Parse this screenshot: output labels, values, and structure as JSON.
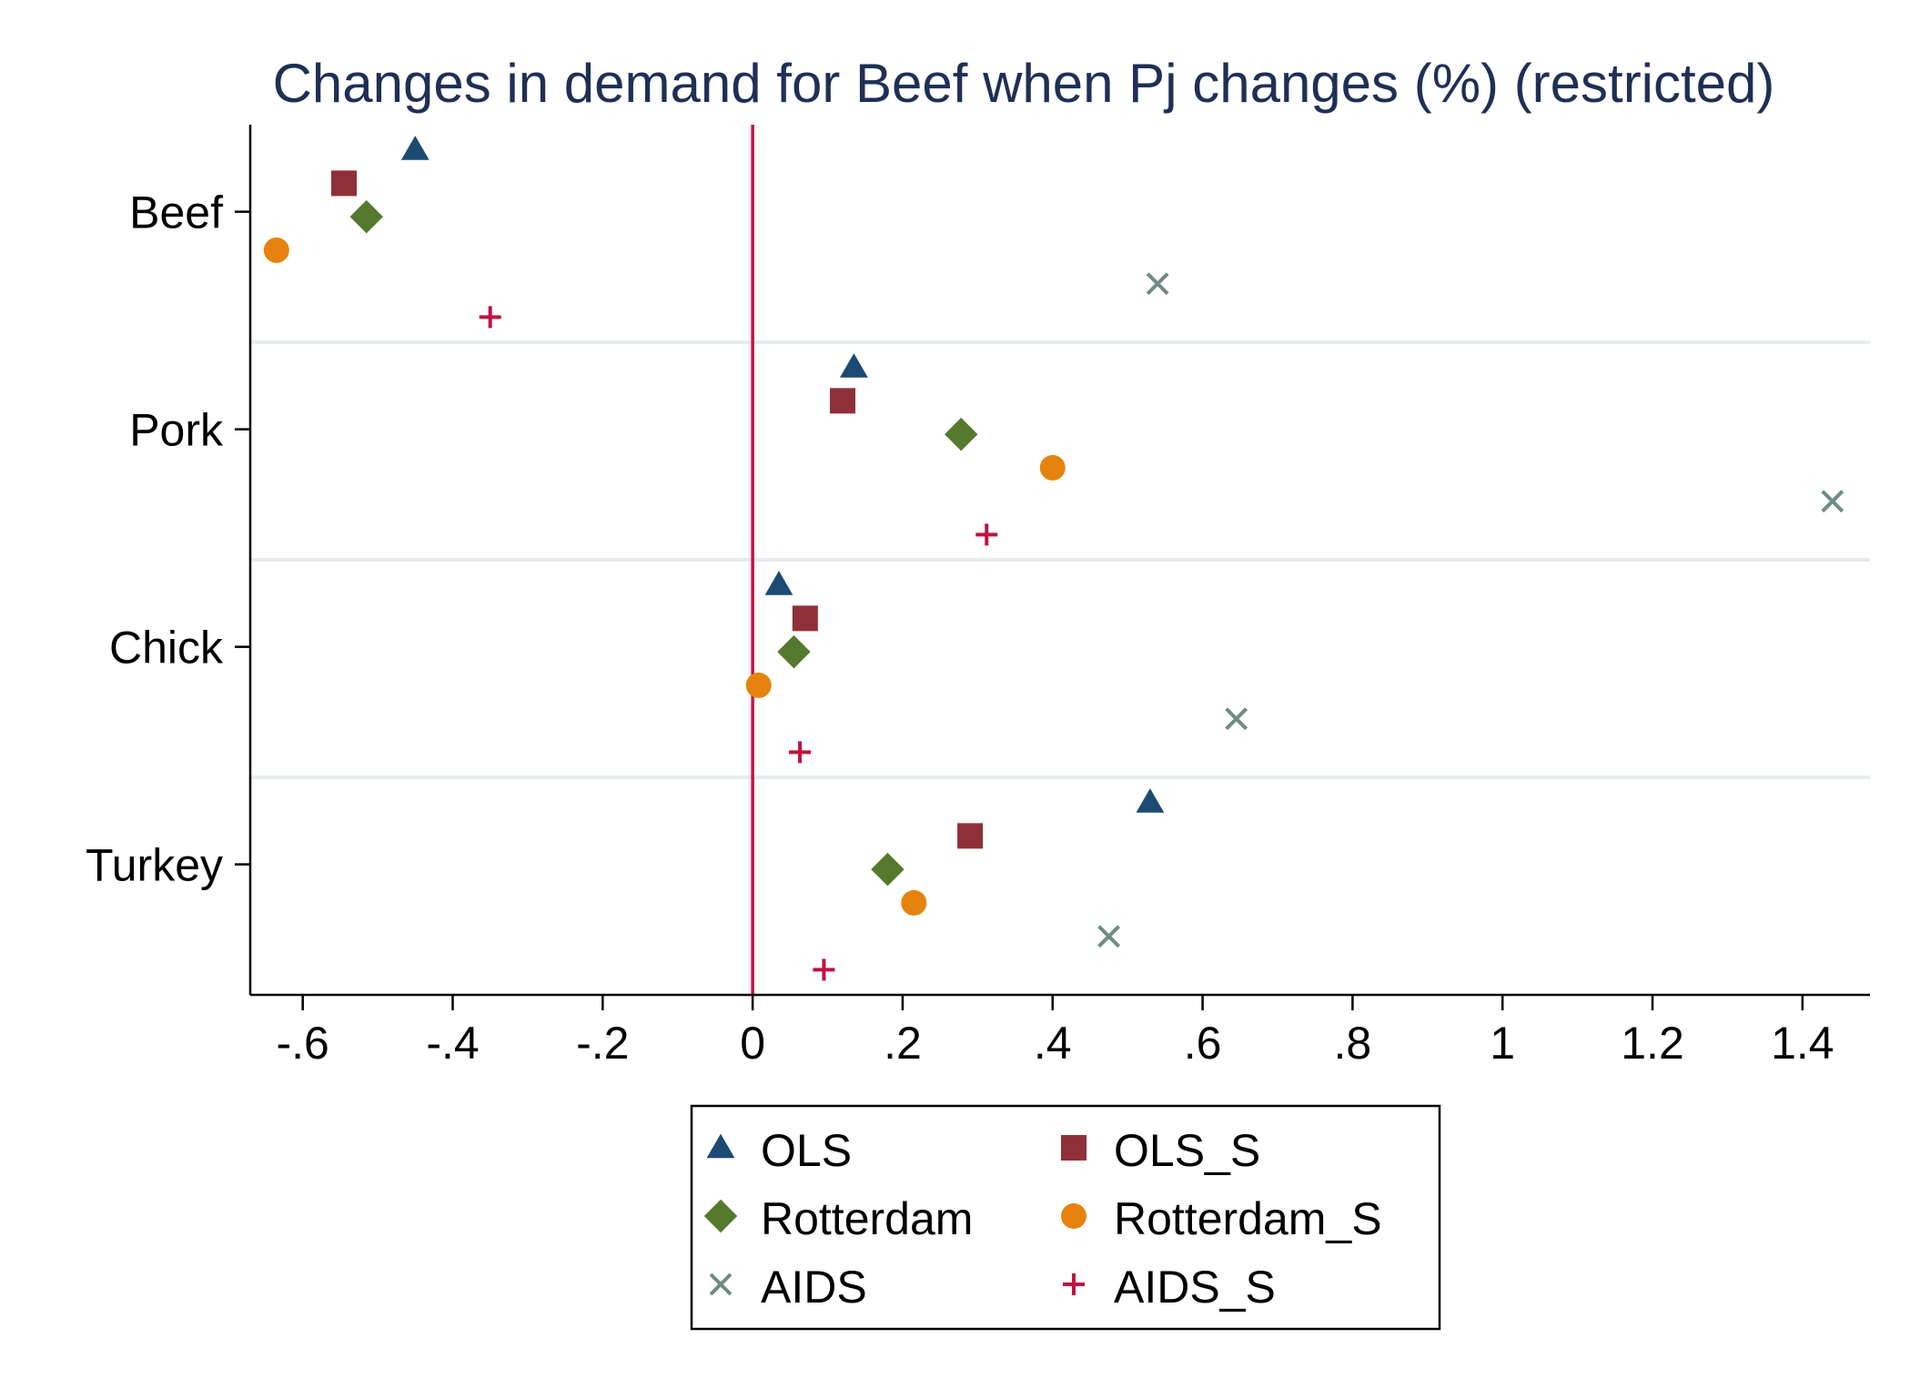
{
  "chart_data": {
    "type": "scatter",
    "title": "Changes in demand for Beef when Pj changes (%) (restricted)",
    "xlabel": "",
    "ylabel": "",
    "categories": [
      "Beef",
      "Pork",
      "Chick",
      "Turkey"
    ],
    "x_ticks": [
      "-.6",
      "-.4",
      "-.2",
      "0",
      ".2",
      ".4",
      ".6",
      ".8",
      "1",
      "1.2",
      "1.4"
    ],
    "x_tick_values": [
      -0.6,
      -0.4,
      -0.2,
      0,
      0.2,
      0.4,
      0.6,
      0.8,
      1.0,
      1.2,
      1.4
    ],
    "xlim": [
      -0.67,
      1.49
    ],
    "reference_line_x": 0,
    "legend_position": "bottom",
    "series": [
      {
        "name": "OLS",
        "marker": "triangle",
        "color": "#1c4a72",
        "values": [
          -0.45,
          0.135,
          0.035,
          0.53
        ]
      },
      {
        "name": "OLS_S",
        "marker": "square",
        "color": "#8f3038",
        "values": [
          -0.545,
          0.12,
          0.07,
          0.29
        ]
      },
      {
        "name": "Rotterdam",
        "marker": "diamond",
        "color": "#557a2d",
        "values": [
          -0.515,
          0.278,
          0.055,
          0.18
        ]
      },
      {
        "name": "Rotterdam_S",
        "marker": "circle",
        "color": "#e5830e",
        "values": [
          -0.635,
          0.4,
          0.008,
          0.215
        ]
      },
      {
        "name": "AIDS",
        "marker": "x",
        "color": "#6e8c85",
        "values": [
          0.54,
          1.44,
          0.645,
          0.475
        ]
      },
      {
        "name": "AIDS_S",
        "marker": "plus",
        "color": "#c1123f",
        "values": [
          -0.35,
          0.312,
          0.063,
          0.095
        ]
      }
    ]
  }
}
